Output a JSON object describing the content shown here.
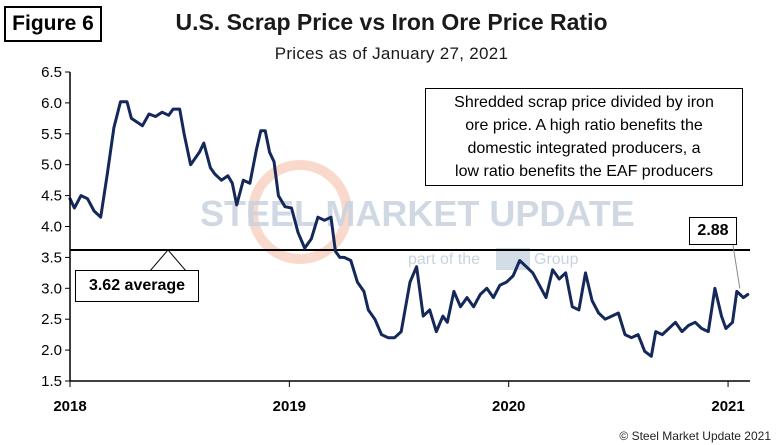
{
  "figure_label": "Figure 6",
  "watermark": {
    "brand": "STEEL MARKET UPDATE",
    "tagline_prefix": "part of the",
    "tagline_suffix": "Group"
  },
  "copyright": "© Steel Market Update 2021",
  "colors": {
    "series": "#14285a",
    "average_line": "#000000",
    "axis": "#000000",
    "watermark": "#c8d3df"
  },
  "chart_data": {
    "type": "line",
    "title": "U.S. Scrap Price vs Iron Ore Price Ratio",
    "subtitle": "Prices as of January 27, 2021",
    "xlabel": "",
    "ylabel": "",
    "ylim": [
      1.5,
      6.5
    ],
    "yticks": [
      "1.5",
      "2.0",
      "2.5",
      "3.0",
      "3.5",
      "4.0",
      "4.5",
      "5.0",
      "5.5",
      "6.0",
      "6.5"
    ],
    "xlim": [
      2018.0,
      2021.1
    ],
    "xticks": [
      2018,
      2019,
      2020,
      2021
    ],
    "xtick_labels": [
      "2018",
      "2019",
      "2020",
      "2021"
    ],
    "grid": false,
    "average": {
      "value": 3.62,
      "label": "3.62 average"
    },
    "annotation": {
      "text": "Shredded scrap price divided by iron ore price. A high ratio benefits the domestic integrated producers, a low ratio benefits the EAF producers",
      "lines": [
        "Shredded scrap price divided by iron",
        "ore price. A high ratio benefits the",
        "domestic integrated producers, a",
        "low ratio benefits the EAF producers"
      ]
    },
    "last_value_label": "2.88",
    "series": [
      {
        "name": "Scrap / Iron Ore Ratio",
        "x": [
          2018.0,
          2018.02,
          2018.05,
          2018.08,
          2018.11,
          2018.14,
          2018.17,
          2018.2,
          2018.23,
          2018.26,
          2018.28,
          2018.31,
          2018.33,
          2018.36,
          2018.39,
          2018.42,
          2018.45,
          2018.47,
          2018.5,
          2018.52,
          2018.55,
          2018.59,
          2018.61,
          2018.64,
          2018.66,
          2018.69,
          2018.72,
          2018.74,
          2018.76,
          2018.79,
          2018.82,
          2018.85,
          2018.87,
          2018.89,
          2018.91,
          2018.93,
          2018.95,
          2018.98,
          2019.01,
          2019.04,
          2019.07,
          2019.1,
          2019.13,
          2019.16,
          2019.19,
          2019.21,
          2019.23,
          2019.25,
          2019.28,
          2019.31,
          2019.34,
          2019.36,
          2019.39,
          2019.42,
          2019.45,
          2019.48,
          2019.51,
          2019.55,
          2019.58,
          2019.61,
          2019.64,
          2019.67,
          2019.7,
          2019.72,
          2019.75,
          2019.78,
          2019.81,
          2019.84,
          2019.87,
          2019.9,
          2019.93,
          2019.96,
          2019.99,
          2020.02,
          2020.05,
          2020.08,
          2020.11,
          2020.14,
          2020.17,
          2020.2,
          2020.23,
          2020.26,
          2020.29,
          2020.32,
          2020.35,
          2020.38,
          2020.41,
          2020.44,
          2020.47,
          2020.5,
          2020.53,
          2020.56,
          2020.59,
          2020.62,
          2020.65,
          2020.67,
          2020.7,
          2020.73,
          2020.76,
          2020.79,
          2020.82,
          2020.85,
          2020.88,
          2020.91,
          2020.94,
          2020.97,
          2020.99,
          2021.02,
          2021.04,
          2021.07,
          2021.09
        ],
        "values": [
          4.45,
          4.3,
          4.5,
          4.45,
          4.25,
          4.15,
          4.85,
          5.6,
          6.02,
          6.02,
          5.75,
          5.68,
          5.63,
          5.82,
          5.78,
          5.85,
          5.8,
          5.9,
          5.9,
          5.5,
          5.0,
          5.2,
          5.35,
          4.95,
          4.85,
          4.75,
          4.82,
          4.7,
          4.35,
          4.75,
          4.7,
          5.25,
          5.55,
          5.55,
          5.2,
          5.05,
          4.5,
          4.32,
          4.3,
          3.9,
          3.65,
          3.8,
          4.15,
          4.1,
          4.15,
          3.6,
          3.5,
          3.5,
          3.45,
          3.1,
          2.95,
          2.65,
          2.5,
          2.25,
          2.2,
          2.2,
          2.3,
          3.1,
          3.35,
          2.55,
          2.65,
          2.3,
          2.55,
          2.45,
          2.95,
          2.7,
          2.85,
          2.7,
          2.9,
          3.0,
          2.85,
          3.05,
          3.1,
          3.2,
          3.45,
          3.35,
          3.25,
          3.05,
          2.85,
          3.3,
          3.15,
          3.25,
          2.7,
          2.65,
          3.25,
          2.8,
          2.6,
          2.5,
          2.55,
          2.6,
          2.25,
          2.2,
          2.25,
          1.98,
          1.9,
          2.3,
          2.25,
          2.35,
          2.45,
          2.3,
          2.4,
          2.45,
          2.35,
          2.3,
          3.0,
          2.55,
          2.35,
          2.45,
          2.95,
          2.85,
          2.9
        ]
      }
    ]
  }
}
